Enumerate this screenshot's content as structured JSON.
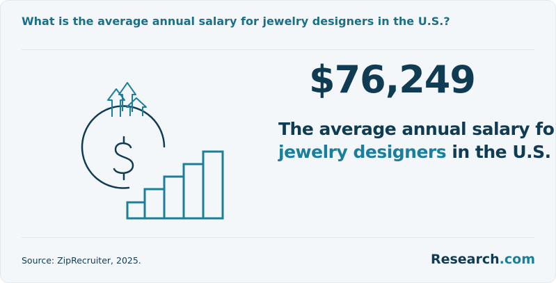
{
  "header": {
    "question": "What is the average annual salary for jewelry designers in the U.S.?"
  },
  "stat": {
    "amount": "$76,249",
    "line1": "The average annual salary for",
    "line2_highlight": "jewelry designers",
    "line2_rest": " in the U.S."
  },
  "footer": {
    "source": "Source: ZipRecruiter, 2025.",
    "logo_main": "Research",
    "logo_suffix": ".com"
  },
  "icons": {
    "illustration": "salary-growth-icon",
    "dollar": "dollar-coin-icon",
    "arrows": "up-arrows-icon",
    "bars": "bar-chart-icon"
  },
  "colors": {
    "dark": "#0f3b53",
    "accent": "#1b7f9c",
    "question": "#1b6f8a",
    "background": "#f4f7f9"
  }
}
